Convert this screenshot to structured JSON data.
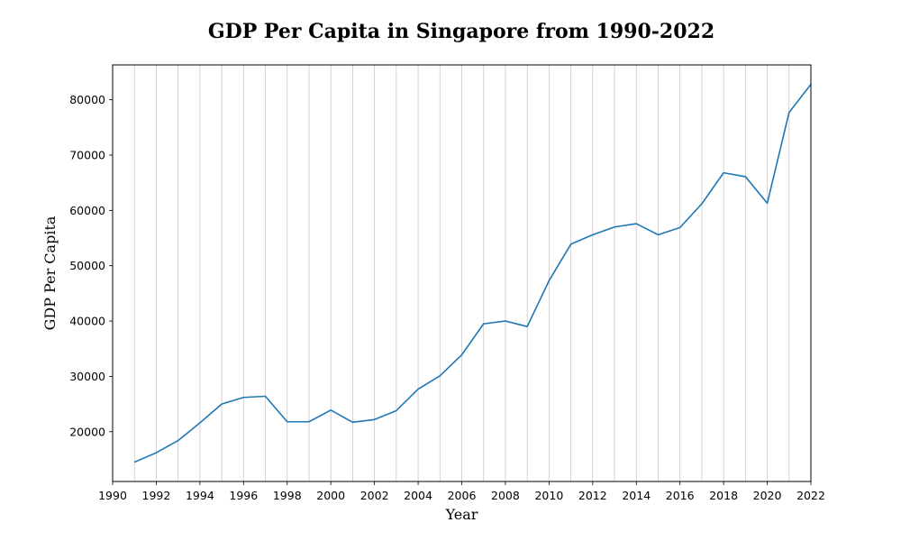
{
  "chart_data": {
    "type": "line",
    "title": "GDP Per Capita in Singapore from 1990-2022",
    "xlabel": "Year",
    "ylabel": "GDP Per Capita",
    "xlim": [
      1990,
      2022
    ],
    "ylim": [
      11000,
      86300
    ],
    "grid": "vertical, every year",
    "line_color": "#1f77b4",
    "x_ticks": [
      1990,
      1992,
      1994,
      1996,
      1998,
      2000,
      2002,
      2004,
      2006,
      2008,
      2010,
      2012,
      2014,
      2016,
      2018,
      2020,
      2022
    ],
    "y_ticks": [
      20000,
      30000,
      40000,
      50000,
      60000,
      70000,
      80000
    ],
    "x_tick_labels": [
      "1990",
      "1992",
      "1994",
      "1996",
      "1998",
      "2000",
      "2002",
      "2004",
      "2006",
      "2008",
      "2010",
      "2012",
      "2014",
      "2016",
      "2018",
      "2020",
      "2022"
    ],
    "y_tick_labels": [
      "20000",
      "30000",
      "40000",
      "50000",
      "60000",
      "70000",
      "80000"
    ],
    "series": [
      {
        "x": [
          1991,
          1992,
          1993,
          1994,
          1995,
          1996,
          1997,
          1998,
          1999,
          2000,
          2001,
          2002,
          2003,
          2004,
          2005,
          2006,
          2007,
          2008,
          2009,
          2010,
          2011,
          2012,
          2013,
          2014,
          2015,
          2016,
          2017,
          2018,
          2019,
          2020,
          2021,
          2022
        ],
        "values": [
          14500,
          16200,
          18400,
          21600,
          25000,
          26200,
          26400,
          21800,
          21800,
          23900,
          21700,
          22200,
          23800,
          27700,
          30100,
          33900,
          39500,
          40000,
          39000,
          47300,
          53900,
          55600,
          57000,
          57600,
          55600,
          56900,
          61200,
          66800,
          66100,
          61300,
          77700,
          82800
        ]
      }
    ]
  }
}
